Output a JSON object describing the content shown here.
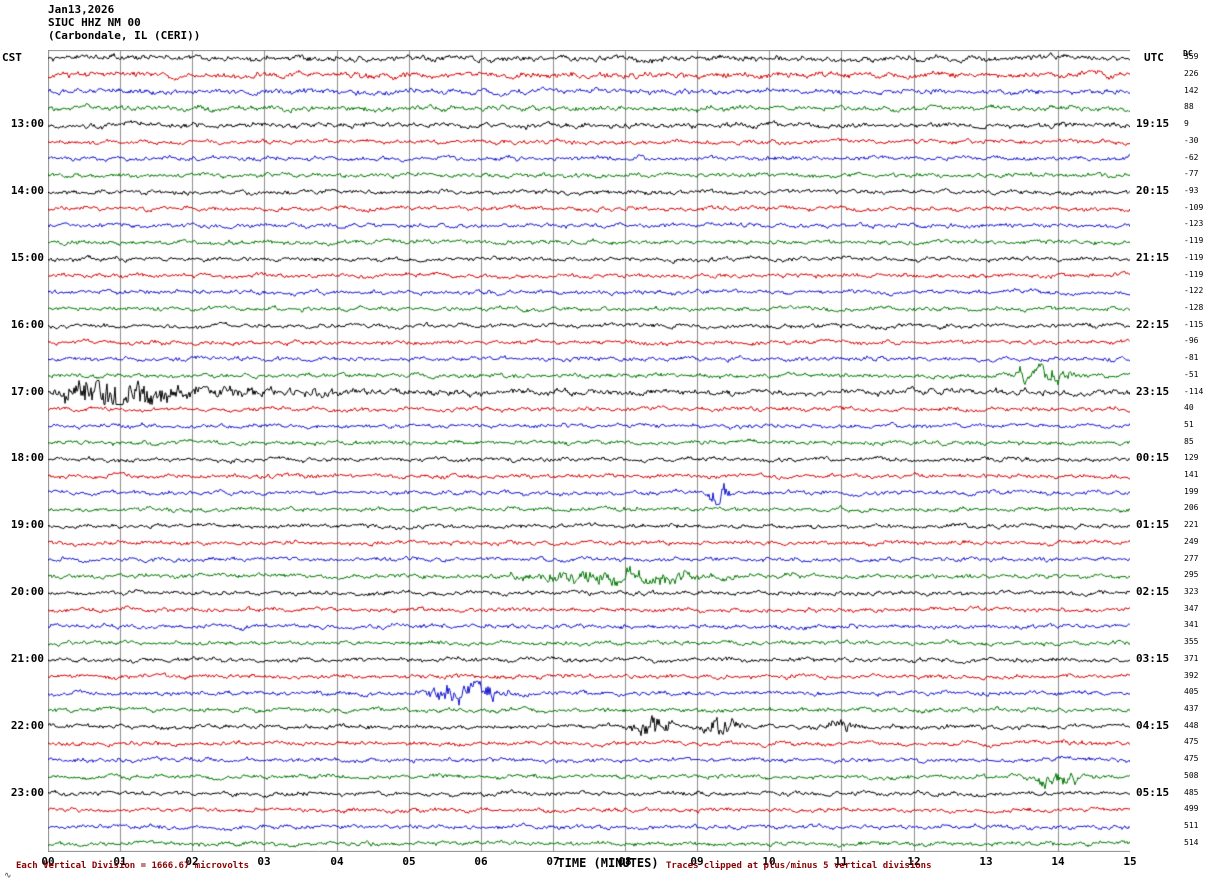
{
  "header": {
    "date": "Jan13,2026",
    "station": "SIUC HHZ NM 00",
    "location": "(Carbondale, IL (CERI))"
  },
  "axes": {
    "left_label": "CST",
    "right_label": "UTC",
    "dc_label": "DC",
    "x_axis_title": "TIME (MINUTES)",
    "x_ticks": [
      "00",
      "01",
      "02",
      "03",
      "04",
      "05",
      "06",
      "07",
      "08",
      "09",
      "10",
      "11",
      "12",
      "13",
      "14",
      "15"
    ]
  },
  "footer": {
    "left": "Each Vertical Division = 1666.67 microvolts",
    "right": "Traces clipped at plus/minus 5 vertical divisions",
    "corner_mark": "∿"
  },
  "colors": {
    "black": "#000000",
    "red": "#d40000",
    "blue": "#1414cc",
    "green": "#007700",
    "grid": "#8c8c8c"
  },
  "chart_data": {
    "type": "line",
    "subtype": "helicorder-seismogram",
    "title": "SIUC HHZ NM 00 (Carbondale, IL (CERI)) Jan13,2026",
    "xlabel": "TIME (MINUTES)",
    "x_range_minutes": [
      0,
      15
    ],
    "minutes_per_row": 15,
    "microvolts_per_division": 1666.67,
    "clip_divisions": 5,
    "grid": "vertical minute lines, boxed plot",
    "legend": "none",
    "rows": [
      {
        "color": "black",
        "cst": "",
        "utc": "",
        "dc": 359,
        "amp": 0.3
      },
      {
        "color": "red",
        "cst": "",
        "utc": "",
        "dc": 226,
        "amp": 0.3
      },
      {
        "color": "blue",
        "cst": "",
        "utc": "",
        "dc": 142,
        "amp": 0.2
      },
      {
        "color": "green",
        "cst": "",
        "utc": "",
        "dc": 88,
        "amp": 0.2
      },
      {
        "color": "black",
        "cst": "13:00",
        "utc": "19:15",
        "dc": 9,
        "amp": 0.2
      },
      {
        "color": "red",
        "cst": "",
        "utc": "",
        "dc": -30
      },
      {
        "color": "blue",
        "cst": "",
        "utc": "",
        "dc": -62
      },
      {
        "color": "green",
        "cst": "",
        "utc": "",
        "dc": -77
      },
      {
        "color": "black",
        "cst": "14:00",
        "utc": "20:15",
        "dc": -93
      },
      {
        "color": "red",
        "cst": "",
        "utc": "",
        "dc": -109
      },
      {
        "color": "blue",
        "cst": "",
        "utc": "",
        "dc": -123
      },
      {
        "color": "green",
        "cst": "",
        "utc": "",
        "dc": -119
      },
      {
        "color": "black",
        "cst": "15:00",
        "utc": "21:15",
        "dc": -119
      },
      {
        "color": "red",
        "cst": "",
        "utc": "",
        "dc": -119
      },
      {
        "color": "blue",
        "cst": "",
        "utc": "",
        "dc": -122
      },
      {
        "color": "green",
        "cst": "",
        "utc": "",
        "dc": -128
      },
      {
        "color": "black",
        "cst": "16:00",
        "utc": "22:15",
        "dc": -115
      },
      {
        "color": "red",
        "cst": "",
        "utc": "",
        "dc": -96
      },
      {
        "color": "blue",
        "cst": "",
        "utc": "",
        "dc": -81
      },
      {
        "color": "green",
        "cst": "",
        "utc": "",
        "dc": -51
      },
      {
        "color": "black",
        "cst": "17:00",
        "utc": "23:15",
        "dc": -114,
        "amp": 0.4
      },
      {
        "color": "red",
        "cst": "",
        "utc": "",
        "dc": 40
      },
      {
        "color": "blue",
        "cst": "",
        "utc": "",
        "dc": 51
      },
      {
        "color": "green",
        "cst": "",
        "utc": "",
        "dc": 85
      },
      {
        "color": "black",
        "cst": "18:00",
        "utc": "00:15",
        "dc": 129
      },
      {
        "color": "red",
        "cst": "",
        "utc": "",
        "dc": 141
      },
      {
        "color": "blue",
        "cst": "",
        "utc": "",
        "dc": 199
      },
      {
        "color": "green",
        "cst": "",
        "utc": "",
        "dc": 206
      },
      {
        "color": "black",
        "cst": "19:00",
        "utc": "01:15",
        "dc": 221
      },
      {
        "color": "red",
        "cst": "",
        "utc": "",
        "dc": 249
      },
      {
        "color": "blue",
        "cst": "",
        "utc": "",
        "dc": 277
      },
      {
        "color": "green",
        "cst": "",
        "utc": "",
        "dc": 295
      },
      {
        "color": "black",
        "cst": "20:00",
        "utc": "02:15",
        "dc": 323
      },
      {
        "color": "red",
        "cst": "",
        "utc": "",
        "dc": 347
      },
      {
        "color": "blue",
        "cst": "",
        "utc": "",
        "dc": 341
      },
      {
        "color": "green",
        "cst": "",
        "utc": "",
        "dc": 355
      },
      {
        "color": "black",
        "cst": "21:00",
        "utc": "03:15",
        "dc": 371
      },
      {
        "color": "red",
        "cst": "",
        "utc": "",
        "dc": 392
      },
      {
        "color": "blue",
        "cst": "",
        "utc": "",
        "dc": 405
      },
      {
        "color": "green",
        "cst": "",
        "utc": "",
        "dc": 437
      },
      {
        "color": "black",
        "cst": "22:00",
        "utc": "04:15",
        "dc": 448
      },
      {
        "color": "red",
        "cst": "",
        "utc": "",
        "dc": 475
      },
      {
        "color": "blue",
        "cst": "",
        "utc": "",
        "dc": 475
      },
      {
        "color": "green",
        "cst": "",
        "utc": "",
        "dc": 508
      },
      {
        "color": "black",
        "cst": "23:00",
        "utc": "05:15",
        "dc": 485
      },
      {
        "color": "red",
        "cst": "",
        "utc": "",
        "dc": 499
      },
      {
        "color": "blue",
        "cst": "",
        "utc": "",
        "dc": 511
      },
      {
        "color": "green",
        "cst": "",
        "utc": "",
        "dc": 514
      }
    ],
    "events": [
      {
        "row": 19,
        "minute": 13.8,
        "width": 0.25,
        "peak": 4
      },
      {
        "row": 20,
        "minute": 0.9,
        "width": 0.45,
        "peak": 7
      },
      {
        "row": 20,
        "minute": 2.2,
        "width": 1.2,
        "peak": 1.2
      },
      {
        "row": 26,
        "minute": 9.3,
        "width": 0.08,
        "peak": 6
      },
      {
        "row": 31,
        "minute": 7.8,
        "width": 0.8,
        "peak": 3
      },
      {
        "row": 38,
        "minute": 5.8,
        "width": 0.3,
        "peak": 6
      },
      {
        "row": 40,
        "minute": 8.4,
        "width": 0.2,
        "peak": 4
      },
      {
        "row": 40,
        "minute": 9.3,
        "width": 0.15,
        "peak": 5
      },
      {
        "row": 40,
        "minute": 11.0,
        "width": 0.12,
        "peak": 3
      },
      {
        "row": 43,
        "minute": 14.0,
        "width": 0.2,
        "peak": 4
      }
    ]
  }
}
